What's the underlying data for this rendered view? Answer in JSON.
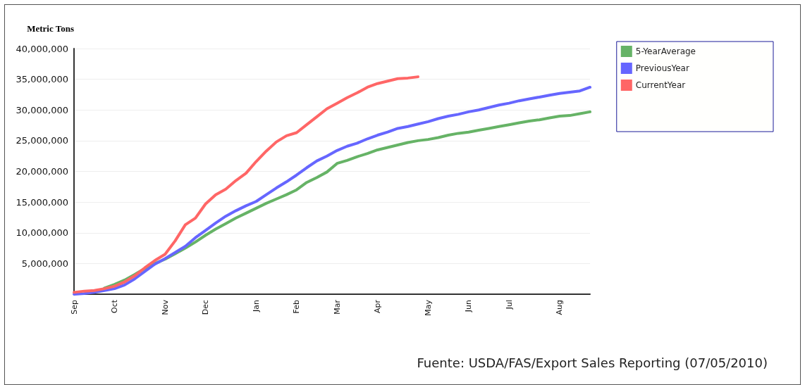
{
  "chart_data": {
    "type": "line",
    "ylabel": "Metric Tons",
    "categories": [
      "Sep",
      null,
      null,
      null,
      "Oct",
      null,
      null,
      null,
      null,
      "Nov",
      null,
      null,
      null,
      "Dec",
      null,
      null,
      null,
      null,
      "Jan",
      null,
      null,
      null,
      "Feb",
      null,
      null,
      null,
      "Mar",
      null,
      null,
      null,
      "Apr",
      null,
      null,
      null,
      null,
      "May",
      null,
      null,
      null,
      "Jun",
      null,
      null,
      null,
      "Jul",
      null,
      null,
      null,
      null,
      "Aug",
      null,
      null,
      null
    ],
    "series": [
      {
        "name": "5-YearAverage",
        "color": "#66b366",
        "values": [
          null,
          null,
          null,
          1000000,
          1600000,
          2300000,
          3200000,
          4200000,
          5000000,
          5700000,
          6600000,
          7500000,
          8500000,
          9600000,
          10600000,
          11500000,
          12400000,
          13200000,
          14000000,
          14800000,
          15500000,
          16200000,
          17000000,
          18200000,
          19000000,
          19900000,
          21300000,
          21800000,
          22400000,
          22900000,
          23500000,
          23900000,
          24300000,
          24700000,
          25000000,
          25200000,
          25500000,
          25900000,
          26200000,
          26400000,
          26700000,
          27000000,
          27300000,
          27600000,
          27900000,
          28200000,
          28400000,
          28700000,
          29000000,
          29100000,
          29400000,
          29700000
        ]
      },
      {
        "name": "PreviousYear",
        "color": "#6666ff",
        "values": [
          0,
          100000,
          300000,
          600000,
          900000,
          1500000,
          2500000,
          3700000,
          4900000,
          5800000,
          6800000,
          7800000,
          9200000,
          10400000,
          11600000,
          12700000,
          13600000,
          14400000,
          15100000,
          16200000,
          17300000,
          18300000,
          19400000,
          20600000,
          21700000,
          22500000,
          23400000,
          24100000,
          24600000,
          25300000,
          25900000,
          26400000,
          27000000,
          27300000,
          27700000,
          28100000,
          28600000,
          29000000,
          29300000,
          29700000,
          30000000,
          30400000,
          30800000,
          31100000,
          31500000,
          31800000,
          32100000,
          32400000,
          32700000,
          32900000,
          33100000,
          33700000
        ]
      },
      {
        "name": "CurrentYear",
        "color": "#ff6666",
        "values": [
          300000,
          500000,
          600000,
          900000,
          1300000,
          2000000,
          3000000,
          4300000,
          5500000,
          6500000,
          8700000,
          11300000,
          12400000,
          14700000,
          16200000,
          17100000,
          18500000,
          19700000,
          21600000,
          23300000,
          24800000,
          25800000,
          26300000,
          27600000,
          28900000,
          30200000,
          31100000,
          32000000,
          32800000,
          33700000,
          34300000,
          34700000,
          35100000,
          35200000,
          35400000,
          null,
          null,
          null,
          null,
          null,
          null,
          null,
          null,
          null,
          null,
          null,
          null,
          null,
          null,
          null,
          null,
          null
        ]
      }
    ],
    "ylim": [
      0,
      40000000
    ],
    "yticks": [
      {
        "value": 0,
        "label": null
      },
      {
        "value": 5000000,
        "label": "5,000,000"
      },
      {
        "value": 10000000,
        "label": "10,000,000"
      },
      {
        "value": 15000000,
        "label": "15,000,000"
      },
      {
        "value": 20000000,
        "label": "20,000,000"
      },
      {
        "value": 25000000,
        "label": "25,000,000"
      },
      {
        "value": 30000000,
        "label": "30,000,000"
      },
      {
        "value": 35000000,
        "label": "35,000,000"
      },
      {
        "value": 40000000,
        "label": "40,000,000"
      }
    ],
    "grid": "y",
    "legend": "top right",
    "marker": "none",
    "line_style": "solid",
    "annotations": [
      "Fuente: USDA/FAS/Export Sales Reporting (07/05/2010)"
    ]
  }
}
